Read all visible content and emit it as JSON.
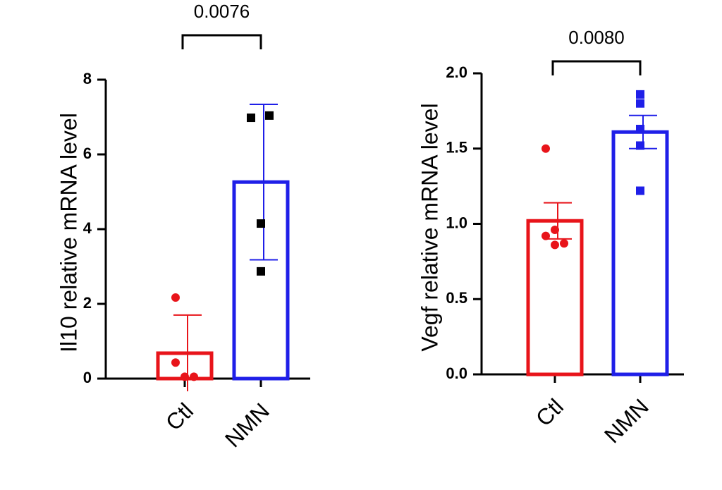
{
  "chart_data": [
    {
      "type": "bar",
      "ylabel": "Il10 relative mRNA level",
      "categories": [
        "Ctl",
        "NMN"
      ],
      "values": [
        0.68,
        5.26
      ],
      "errors": [
        1.02,
        2.08
      ],
      "points": [
        [
          2.17,
          0.05,
          0.05,
          0.43
        ],
        [
          6.98,
          7.04,
          4.15,
          2.87
        ]
      ],
      "colors": [
        "#e8141a",
        "#1f1fe8"
      ],
      "point_colors": [
        "#e8141a",
        "#000000"
      ],
      "point_markers": [
        "circle",
        "square"
      ],
      "ylim": [
        0,
        8
      ],
      "yticks": [
        0,
        2,
        4,
        6,
        8
      ],
      "annotation": "0.0076"
    },
    {
      "type": "bar",
      "ylabel": "Vegf relative mRNA level",
      "categories": [
        "Ctl",
        "NMN"
      ],
      "values": [
        1.02,
        1.61
      ],
      "errors": [
        0.12,
        0.11
      ],
      "points": [
        [
          1.5,
          0.86,
          0.87,
          0.92,
          0.96
        ],
        [
          1.86,
          1.8,
          1.63,
          1.52,
          1.22
        ]
      ],
      "colors": [
        "#e8141a",
        "#1f1fe8"
      ],
      "point_colors": [
        "#e8141a",
        "#1f1fe8"
      ],
      "point_markers": [
        "circle",
        "square"
      ],
      "ylim": [
        0,
        2
      ],
      "yticks": [
        {
          "value": 0,
          "label": "0.0"
        },
        0.5,
        {
          "value": 1,
          "label": "1.0"
        },
        1.5,
        {
          "value": 2,
          "label": "2.0"
        }
      ],
      "annotation": "0.0080"
    }
  ]
}
